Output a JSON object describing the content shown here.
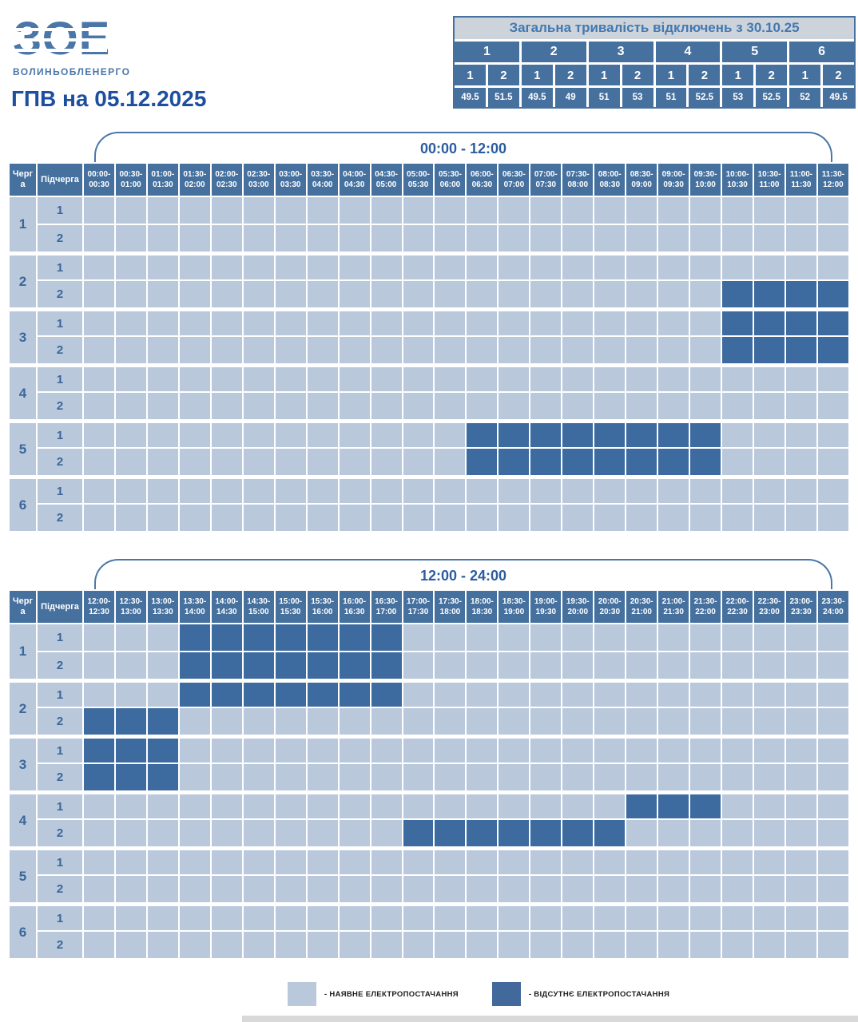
{
  "logo": {
    "monogram": "ЗОЕ",
    "company": "ВОЛИНЬОБЛЕНЕРГО"
  },
  "page_title": "ГПВ на 05.12.2025",
  "summary_table": {
    "title": "Загальна тривалість відключень з 30.10.25",
    "queues": [
      "1",
      "2",
      "3",
      "4",
      "5",
      "6"
    ],
    "subqueues": [
      "1",
      "2",
      "1",
      "2",
      "1",
      "2",
      "1",
      "2",
      "1",
      "2",
      "1",
      "2"
    ],
    "values": [
      "49.5",
      "51.5",
      "49.5",
      "49",
      "51",
      "53",
      "51",
      "52.5",
      "53",
      "52.5",
      "52",
      "49.5"
    ]
  },
  "row_header": {
    "queue": "Черга",
    "subqueue": "Підчерга"
  },
  "legend": {
    "available": "- НАЯВНЕ ЕЛЕКТРОПОСТАЧАННЯ",
    "unavailable": "- ВІДСУТНЄ ЕЛЕКТРОПОСТАЧАННЯ"
  },
  "colors": {
    "available_cell": "#b9c8da",
    "outage_cell": "#3d6b9f",
    "header_cell": "#46719f",
    "title_text": "#1d4f9e",
    "bracket_line": "#4a77a8",
    "summary_title_bg": "#ccd3db"
  },
  "chart_data": [
    {
      "type": "heatmap",
      "title": "00:00 - 12:00",
      "x_labels": [
        "00:00-00:30",
        "00:30-01:00",
        "01:00-01:30",
        "01:30-02:00",
        "02:00-02:30",
        "02:30-03:00",
        "03:00-03:30",
        "03:30-04:00",
        "04:00-04:30",
        "04:30-05:00",
        "05:00-05:30",
        "05:30-06:00",
        "06:00-06:30",
        "06:30-07:00",
        "07:00-07:30",
        "07:30-08:00",
        "08:00-08:30",
        "08:30-09:00",
        "09:00-09:30",
        "09:30-10:00",
        "10:00-10:30",
        "10:30-11:00",
        "11:00-11:30",
        "11:30-12:00"
      ],
      "values_meaning": "outage_slot_indices mark slots with no electricity (dark cells)",
      "rows": [
        {
          "queue": "1",
          "subqueue": "1",
          "outage_slot_indices": [],
          "outage_ranges": []
        },
        {
          "queue": "1",
          "subqueue": "2",
          "outage_slot_indices": [],
          "outage_ranges": []
        },
        {
          "queue": "2",
          "subqueue": "1",
          "outage_slot_indices": [],
          "outage_ranges": []
        },
        {
          "queue": "2",
          "subqueue": "2",
          "outage_slot_indices": [
            20,
            21,
            22,
            23
          ],
          "outage_ranges": [
            "10:00-12:00"
          ]
        },
        {
          "queue": "3",
          "subqueue": "1",
          "outage_slot_indices": [
            20,
            21,
            22,
            23
          ],
          "outage_ranges": [
            "10:00-12:00"
          ]
        },
        {
          "queue": "3",
          "subqueue": "2",
          "outage_slot_indices": [
            20,
            21,
            22,
            23
          ],
          "outage_ranges": [
            "10:00-12:00"
          ]
        },
        {
          "queue": "4",
          "subqueue": "1",
          "outage_slot_indices": [],
          "outage_ranges": []
        },
        {
          "queue": "4",
          "subqueue": "2",
          "outage_slot_indices": [],
          "outage_ranges": []
        },
        {
          "queue": "5",
          "subqueue": "1",
          "outage_slot_indices": [
            12,
            13,
            14,
            15,
            16,
            17,
            18,
            19
          ],
          "outage_ranges": [
            "06:00-10:00"
          ]
        },
        {
          "queue": "5",
          "subqueue": "2",
          "outage_slot_indices": [
            12,
            13,
            14,
            15,
            16,
            17,
            18,
            19
          ],
          "outage_ranges": [
            "06:00-10:00"
          ]
        },
        {
          "queue": "6",
          "subqueue": "1",
          "outage_slot_indices": [],
          "outage_ranges": []
        },
        {
          "queue": "6",
          "subqueue": "2",
          "outage_slot_indices": [],
          "outage_ranges": []
        }
      ],
      "legend_position": "bottom"
    },
    {
      "type": "heatmap",
      "title": "12:00 - 24:00",
      "x_labels": [
        "12:00-12:30",
        "12:30-13:00",
        "13:00-13:30",
        "13:30-14:00",
        "14:00-14:30",
        "14:30-15:00",
        "15:00-15:30",
        "15:30-16:00",
        "16:00-16:30",
        "16:30-17:00",
        "17:00-17:30",
        "17:30-18:00",
        "18:00-18:30",
        "18:30-19:00",
        "19:00-19:30",
        "19:30-20:00",
        "20:00-20:30",
        "20:30-21:00",
        "21:00-21:30",
        "21:30-22:00",
        "22:00-22:30",
        "22:30-23:00",
        "23:00-23:30",
        "23:30-24:00"
      ],
      "values_meaning": "outage_slot_indices mark slots with no electricity (dark cells)",
      "rows": [
        {
          "queue": "1",
          "subqueue": "1",
          "outage_slot_indices": [
            3,
            4,
            5,
            6,
            7,
            8,
            9
          ],
          "outage_ranges": [
            "13:30-17:00"
          ]
        },
        {
          "queue": "1",
          "subqueue": "2",
          "outage_slot_indices": [
            3,
            4,
            5,
            6,
            7,
            8,
            9
          ],
          "outage_ranges": [
            "13:30-17:00"
          ]
        },
        {
          "queue": "2",
          "subqueue": "1",
          "outage_slot_indices": [
            3,
            4,
            5,
            6,
            7,
            8,
            9
          ],
          "outage_ranges": [
            "13:30-17:00"
          ]
        },
        {
          "queue": "2",
          "subqueue": "2",
          "outage_slot_indices": [
            0,
            1,
            2
          ],
          "outage_ranges": [
            "12:00-13:30"
          ]
        },
        {
          "queue": "3",
          "subqueue": "1",
          "outage_slot_indices": [
            0,
            1,
            2
          ],
          "outage_ranges": [
            "12:00-13:30"
          ]
        },
        {
          "queue": "3",
          "subqueue": "2",
          "outage_slot_indices": [
            0,
            1,
            2
          ],
          "outage_ranges": [
            "12:00-13:30"
          ]
        },
        {
          "queue": "4",
          "subqueue": "1",
          "outage_slot_indices": [
            17,
            18,
            19
          ],
          "outage_ranges": [
            "20:30-22:00"
          ]
        },
        {
          "queue": "4",
          "subqueue": "2",
          "outage_slot_indices": [
            10,
            11,
            12,
            13,
            14,
            15,
            16
          ],
          "outage_ranges": [
            "17:00-20:30"
          ]
        },
        {
          "queue": "5",
          "subqueue": "1",
          "outage_slot_indices": [],
          "outage_ranges": []
        },
        {
          "queue": "5",
          "subqueue": "2",
          "outage_slot_indices": [],
          "outage_ranges": []
        },
        {
          "queue": "6",
          "subqueue": "1",
          "outage_slot_indices": [],
          "outage_ranges": []
        },
        {
          "queue": "6",
          "subqueue": "2",
          "outage_slot_indices": [],
          "outage_ranges": []
        }
      ],
      "legend_position": "bottom"
    }
  ]
}
